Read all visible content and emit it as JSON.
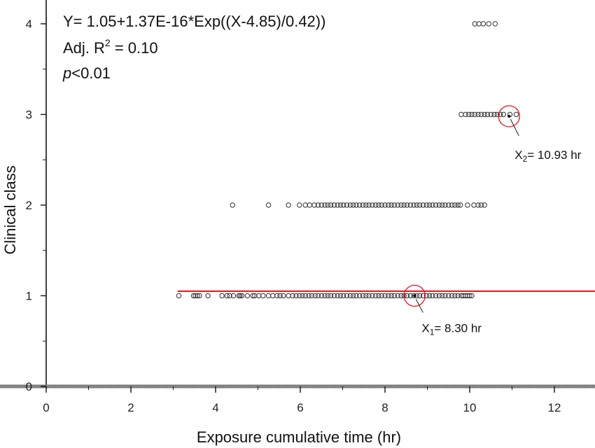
{
  "chart_data": {
    "type": "scatter",
    "title": "",
    "xlabel": "Exposure cumulative time (hr)",
    "ylabel": "Clinical class",
    "xlim": [
      -0.5,
      13
    ],
    "ylim": [
      0,
      4.25
    ],
    "x_ticks": [
      0,
      2,
      4,
      6,
      8,
      10,
      12
    ],
    "y_ticks": [
      0,
      1,
      2,
      3,
      4
    ],
    "grid": false,
    "legend": "none",
    "equation": {
      "line1": "Y= 1.05+1.37E-16*Exp((X-4.85)/0.42))",
      "adj_prefix": "Adj. R",
      "adj_exp": "2",
      "adj_suffix": " = 0.10",
      "p_letter": "p",
      "p_rest": "<0.01"
    },
    "fit": {
      "label": "",
      "color": "#e8151b",
      "a": 1.05,
      "b": 1.37e-16,
      "c": 4.85,
      "d": 0.42,
      "x_start": 3.1
    },
    "annotations": [
      {
        "sub": "1",
        "x": 8.7,
        "y": 1.0,
        "rest": "= 8.30 hr"
      },
      {
        "sub": "2",
        "x": 10.93,
        "y": 2.98,
        "rest": "= 10.93 hr"
      }
    ],
    "marker_color": "#333333",
    "circle_color": "#e8151b",
    "series": [
      {
        "y": 1,
        "x": [
          3.13,
          3.48,
          3.52,
          3.57,
          3.62,
          3.82,
          4.15,
          4.27,
          4.33,
          4.42,
          4.55,
          4.58,
          4.62,
          4.75,
          4.88,
          4.92,
          5.02,
          5.12,
          5.25,
          5.35,
          5.45,
          5.52,
          5.6,
          5.72,
          5.82,
          5.9,
          5.98,
          6.05,
          6.12,
          6.2,
          6.27,
          6.35,
          6.42,
          6.5,
          6.58,
          6.65,
          6.72,
          6.8,
          6.88,
          6.95,
          7.02,
          7.1,
          7.18,
          7.25,
          7.32,
          7.4,
          7.48,
          7.55,
          7.62,
          7.7,
          7.78,
          7.85,
          7.92,
          8.0,
          8.08,
          8.15,
          8.22,
          8.3,
          8.38,
          8.45,
          8.52,
          8.6,
          8.68,
          8.75,
          8.82,
          8.9,
          8.98,
          9.05,
          9.12,
          9.2,
          9.28,
          9.35,
          9.42,
          9.5,
          9.58,
          9.65,
          9.72,
          9.8,
          9.85,
          9.9,
          9.95,
          10.0,
          10.05
        ]
      },
      {
        "y": 2,
        "x": [
          4.4,
          5.25,
          5.72,
          5.98,
          6.12,
          6.22,
          6.33,
          6.42,
          6.5,
          6.58,
          6.65,
          6.72,
          6.8,
          6.88,
          6.95,
          7.02,
          7.1,
          7.18,
          7.25,
          7.32,
          7.4,
          7.48,
          7.55,
          7.62,
          7.7,
          7.78,
          7.85,
          7.92,
          8.0,
          8.08,
          8.15,
          8.22,
          8.3,
          8.38,
          8.45,
          8.52,
          8.6,
          8.68,
          8.75,
          8.82,
          8.9,
          8.98,
          9.05,
          9.12,
          9.2,
          9.28,
          9.35,
          9.42,
          9.5,
          9.58,
          9.65,
          9.72,
          9.78,
          9.95,
          10.1,
          10.2,
          10.27,
          10.35
        ]
      },
      {
        "y": 3,
        "x": [
          9.8,
          9.9,
          9.98,
          10.05,
          10.12,
          10.2,
          10.27,
          10.35,
          10.42,
          10.5,
          10.58,
          10.65,
          10.72,
          10.8,
          10.95,
          11.1
        ]
      },
      {
        "y": 4,
        "x": [
          10.12,
          10.22,
          10.32,
          10.45,
          10.6
        ]
      }
    ]
  }
}
